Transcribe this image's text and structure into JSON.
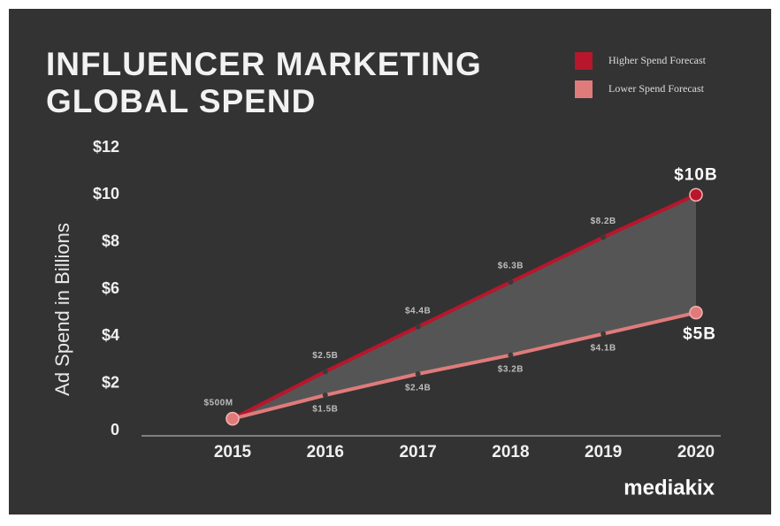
{
  "chart_data": {
    "type": "line",
    "title": "INFLUENCER MARKETING GLOBAL SPEND",
    "y_label": "Ad Spend in Billions",
    "categories": [
      "2015",
      "2016",
      "2017",
      "2018",
      "2019",
      "2020"
    ],
    "series": [
      {
        "name": "Higher Spend Forecast",
        "color": "#b8162c",
        "values": [
          0.5,
          2.5,
          4.4,
          6.3,
          8.2,
          10
        ],
        "value_labels": [
          "$500M",
          "$2.5B",
          "$4.4B",
          "$6.3B",
          "$8.2B",
          "$10B"
        ]
      },
      {
        "name": "Lower Spend Forecast",
        "color": "#e07b7b",
        "values": [
          0.5,
          1.5,
          2.4,
          3.2,
          4.1,
          5
        ],
        "value_labels": [
          null,
          "$1.5B",
          "$2.4B",
          "$3.2B",
          "$4.1B",
          "$5B"
        ]
      }
    ],
    "ylim": [
      0,
      12
    ],
    "yticks": [
      0,
      {
        "value": 2,
        "label": "$2"
      },
      {
        "value": 4,
        "label": "$4"
      },
      {
        "value": 6,
        "label": "$6"
      },
      {
        "value": 8,
        "label": "$8"
      },
      {
        "value": 10,
        "label": "$10"
      },
      {
        "value": 12,
        "label": "$12"
      }
    ],
    "legend": "top-right",
    "fill_between": true
  },
  "logo": "mediakix"
}
